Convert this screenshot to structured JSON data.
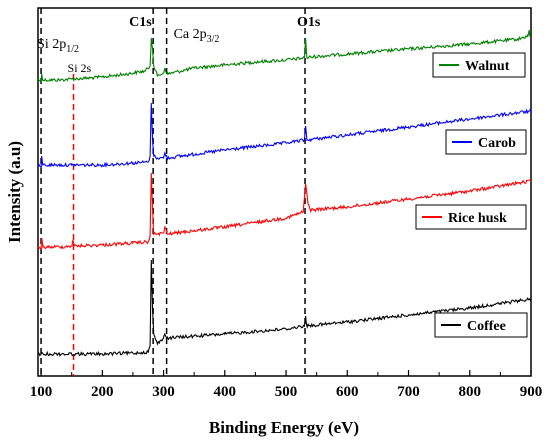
{
  "chart_data": {
    "type": "line",
    "xlabel": "Binding Energy (eV)",
    "ylabel": "Intensity (a.u)",
    "xlim": [
      95,
      900
    ],
    "x_ticks": [
      100,
      200,
      300,
      400,
      500,
      600,
      700,
      800,
      900
    ],
    "x_tick_labels": [
      "100",
      "200",
      "300",
      "400",
      "500",
      "600",
      "700",
      "800",
      "900"
    ],
    "y_ticks": "none",
    "grid": false,
    "legend": "right, one box per series beside its curve",
    "series": [
      {
        "name": "Walnut",
        "color": "#008000",
        "legend_label": "Walnut",
        "points": [
          [
            95,
            71
          ],
          [
            100,
            74
          ],
          [
            101,
            66
          ],
          [
            103,
            72
          ],
          [
            130,
            72
          ],
          [
            150,
            71
          ],
          [
            152,
            70
          ],
          [
            154,
            71
          ],
          [
            180,
            70
          ],
          [
            200,
            69
          ],
          [
            240,
            66
          ],
          [
            270,
            63
          ],
          [
            278,
            58
          ],
          [
            280,
            30
          ],
          [
            282,
            40
          ],
          [
            284,
            58
          ],
          [
            290,
            68
          ],
          [
            300,
            65
          ],
          [
            302,
            60
          ],
          [
            306,
            66
          ],
          [
            350,
            60
          ],
          [
            400,
            57
          ],
          [
            450,
            54
          ],
          [
            500,
            52
          ],
          [
            530,
            50
          ],
          [
            532,
            30
          ],
          [
            534,
            50
          ],
          [
            540,
            49
          ],
          [
            600,
            46
          ],
          [
            700,
            41
          ],
          [
            800,
            36
          ],
          [
            880,
            31
          ],
          [
            895,
            28
          ],
          [
            897,
            22
          ],
          [
            898,
            28
          ],
          [
            900,
            28
          ]
        ]
      },
      {
        "name": "Carob",
        "color": "#0000ff",
        "legend_label": "Carob",
        "points": [
          [
            95,
            157
          ],
          [
            100,
            160
          ],
          [
            101,
            148
          ],
          [
            103,
            157
          ],
          [
            150,
            157
          ],
          [
            200,
            157
          ],
          [
            250,
            155
          ],
          [
            275,
            154
          ],
          [
            278,
            148
          ],
          [
            280,
            95
          ],
          [
            282,
            130
          ],
          [
            284,
            148
          ],
          [
            290,
            150
          ],
          [
            300,
            150
          ],
          [
            302,
            145
          ],
          [
            306,
            150
          ],
          [
            400,
            142
          ],
          [
            500,
            135
          ],
          [
            530,
            132
          ],
          [
            532,
            118
          ],
          [
            534,
            132
          ],
          [
            600,
            127
          ],
          [
            700,
            119
          ],
          [
            800,
            111
          ],
          [
            900,
            103
          ]
        ]
      },
      {
        "name": "Rice husk",
        "color": "#ff0000",
        "legend_label": "Rice husk",
        "points": [
          [
            95,
            239
          ],
          [
            100,
            242
          ],
          [
            101,
            230
          ],
          [
            103,
            239
          ],
          [
            130,
            239
          ],
          [
            150,
            238
          ],
          [
            152,
            232
          ],
          [
            154,
            238
          ],
          [
            200,
            237
          ],
          [
            250,
            235
          ],
          [
            275,
            234
          ],
          [
            278,
            228
          ],
          [
            280,
            165
          ],
          [
            282,
            200
          ],
          [
            284,
            226
          ],
          [
            290,
            226
          ],
          [
            300,
            225
          ],
          [
            302,
            219
          ],
          [
            306,
            226
          ],
          [
            400,
            219
          ],
          [
            500,
            210
          ],
          [
            528,
            204
          ],
          [
            532,
            176
          ],
          [
            536,
            196
          ],
          [
            540,
            202
          ],
          [
            600,
            199
          ],
          [
            700,
            191
          ],
          [
            800,
            183
          ],
          [
            900,
            173
          ]
        ]
      },
      {
        "name": "Coffee",
        "color": "#000000",
        "legend_label": "Coffee",
        "points": [
          [
            95,
            346
          ],
          [
            150,
            346
          ],
          [
            200,
            346
          ],
          [
            250,
            345
          ],
          [
            275,
            344
          ],
          [
            278,
            338
          ],
          [
            280,
            252
          ],
          [
            282,
            300
          ],
          [
            284,
            326
          ],
          [
            290,
            336
          ],
          [
            296,
            332
          ],
          [
            300,
            330
          ],
          [
            302,
            326
          ],
          [
            306,
            330
          ],
          [
            400,
            326
          ],
          [
            500,
            321
          ],
          [
            530,
            318
          ],
          [
            532,
            308
          ],
          [
            534,
            318
          ],
          [
            600,
            314
          ],
          [
            700,
            307
          ],
          [
            800,
            300
          ],
          [
            900,
            291
          ]
        ]
      }
    ],
    "annotations": [
      {
        "x": 100,
        "label_main": "Si 2p",
        "label_sub": "1/2",
        "color": "#000000",
        "dash": true
      },
      {
        "x": 153,
        "label_main": "Si 2s",
        "label_sub": "",
        "color": "#ff0000",
        "dash": true
      },
      {
        "x": 283,
        "label_main": "C1s",
        "label_sub": "",
        "color": "#000000",
        "dash": true
      },
      {
        "x": 305,
        "label_main": "Ca 2p",
        "label_sub": "3/2",
        "color": "#000000",
        "dash": true
      },
      {
        "x": 531,
        "label_main": "O1s",
        "label_sub": "",
        "color": "#000000",
        "dash": true
      }
    ]
  }
}
